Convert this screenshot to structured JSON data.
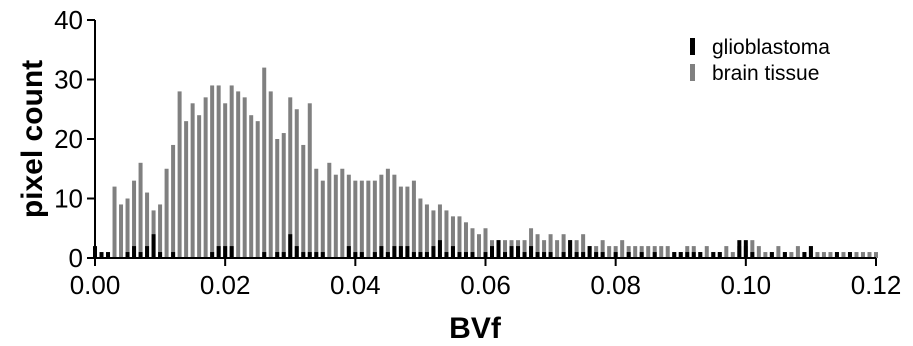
{
  "chart_data": {
    "type": "bar",
    "xlabel": "BVf",
    "ylabel": "pixel count",
    "xlim": [
      0,
      0.12
    ],
    "ylim": [
      0,
      40
    ],
    "xticks": [
      "0.00",
      "0.02",
      "0.04",
      "0.06",
      "0.08",
      "0.10",
      "0.12"
    ],
    "yticks": [
      "0",
      "10",
      "20",
      "30",
      "40"
    ],
    "legend_position": "top-right",
    "series": [
      {
        "name": "glioblastoma",
        "color": "#000000",
        "x": [
          0.0,
          0.001,
          0.002,
          0.005,
          0.006,
          0.007,
          0.008,
          0.009,
          0.01,
          0.012,
          0.018,
          0.019,
          0.02,
          0.021,
          0.026,
          0.028,
          0.029,
          0.03,
          0.031,
          0.032,
          0.033,
          0.034,
          0.035,
          0.039,
          0.04,
          0.041,
          0.043,
          0.044,
          0.045,
          0.046,
          0.047,
          0.048,
          0.049,
          0.05,
          0.051,
          0.052,
          0.053,
          0.054,
          0.055,
          0.056,
          0.057,
          0.058,
          0.06,
          0.061,
          0.062,
          0.063,
          0.064,
          0.065,
          0.066,
          0.067,
          0.068,
          0.069,
          0.07,
          0.072,
          0.073,
          0.074,
          0.075,
          0.076,
          0.077,
          0.078,
          0.08,
          0.082,
          0.084,
          0.086,
          0.089,
          0.09,
          0.091,
          0.092,
          0.093,
          0.095,
          0.096,
          0.099,
          0.1,
          0.101,
          0.104,
          0.106,
          0.109,
          0.11,
          0.114,
          0.116
        ],
        "values": [
          2,
          1,
          1,
          1,
          2,
          1,
          2,
          4,
          1,
          1,
          1,
          2,
          2,
          2,
          1,
          1,
          1,
          4,
          2,
          1,
          1,
          1,
          1,
          2,
          1,
          1,
          1,
          2,
          1,
          2,
          2,
          2,
          1,
          1,
          1,
          2,
          3,
          1,
          2,
          1,
          1,
          1,
          1,
          2,
          3,
          1,
          2,
          2,
          1,
          2,
          1,
          1,
          1,
          1,
          3,
          1,
          1,
          2,
          1,
          1,
          1,
          1,
          1,
          1,
          1,
          1,
          1,
          1,
          1,
          1,
          1,
          3,
          3,
          1,
          1,
          1,
          1,
          2,
          1,
          1
        ]
      },
      {
        "name": "brain tissue",
        "color": "#808080",
        "x": [
          0.0,
          0.001,
          0.002,
          0.003,
          0.004,
          0.005,
          0.006,
          0.007,
          0.008,
          0.009,
          0.01,
          0.011,
          0.012,
          0.013,
          0.014,
          0.015,
          0.016,
          0.017,
          0.018,
          0.019,
          0.02,
          0.021,
          0.022,
          0.023,
          0.024,
          0.025,
          0.026,
          0.027,
          0.028,
          0.029,
          0.03,
          0.031,
          0.032,
          0.033,
          0.034,
          0.035,
          0.036,
          0.037,
          0.038,
          0.039,
          0.04,
          0.041,
          0.042,
          0.043,
          0.044,
          0.045,
          0.046,
          0.047,
          0.048,
          0.049,
          0.05,
          0.051,
          0.052,
          0.053,
          0.054,
          0.055,
          0.056,
          0.057,
          0.058,
          0.059,
          0.06,
          0.061,
          0.062,
          0.063,
          0.064,
          0.065,
          0.066,
          0.067,
          0.068,
          0.069,
          0.07,
          0.071,
          0.072,
          0.073,
          0.074,
          0.075,
          0.076,
          0.077,
          0.078,
          0.079,
          0.08,
          0.081,
          0.082,
          0.083,
          0.084,
          0.085,
          0.086,
          0.087,
          0.088,
          0.089,
          0.09,
          0.091,
          0.092,
          0.093,
          0.094,
          0.095,
          0.096,
          0.097,
          0.098,
          0.099,
          0.1,
          0.101,
          0.102,
          0.103,
          0.104,
          0.105,
          0.106,
          0.107,
          0.108,
          0.109,
          0.11,
          0.111,
          0.112,
          0.113,
          0.114,
          0.115,
          0.116,
          0.117,
          0.118,
          0.119,
          0.12
        ],
        "values": [
          0,
          0,
          0,
          12,
          9,
          10,
          13,
          16,
          11,
          8,
          9,
          15,
          19,
          28,
          23,
          26,
          24,
          27,
          29,
          29,
          26,
          29,
          28,
          27,
          24,
          23,
          32,
          28,
          20,
          21,
          27,
          25,
          19,
          26,
          15,
          13,
          16,
          14,
          15,
          14,
          13,
          13,
          13,
          13,
          14,
          15,
          14,
          12,
          12,
          13,
          10,
          9,
          8,
          9,
          8,
          7,
          7,
          6,
          5,
          4,
          5,
          3,
          3,
          3,
          3,
          3,
          3,
          5,
          4,
          3,
          4,
          3,
          4,
          3,
          3,
          4,
          2,
          2,
          3,
          2,
          2,
          3,
          2,
          2,
          2,
          2,
          2,
          2,
          2,
          1,
          1,
          2,
          2,
          1,
          2,
          1,
          1,
          2,
          1,
          2,
          2,
          3,
          2,
          1,
          1,
          2,
          1,
          1,
          2,
          1,
          2,
          1,
          1,
          1,
          1,
          1,
          1,
          1,
          1,
          1,
          1
        ]
      }
    ]
  }
}
